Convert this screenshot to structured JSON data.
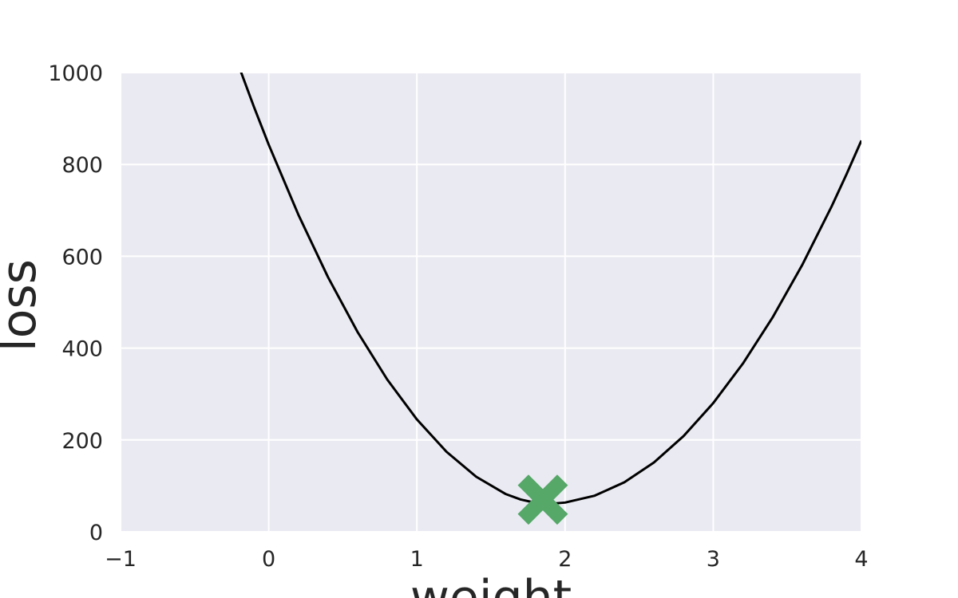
{
  "chart_data": {
    "type": "line",
    "title": "",
    "xlabel": "weight",
    "ylabel": "loss",
    "xlim": [
      -1,
      4
    ],
    "ylim": [
      0,
      1000
    ],
    "x_ticks": [
      -1,
      0,
      1,
      2,
      3,
      4
    ],
    "x_tick_labels": [
      "−1",
      "0",
      "1",
      "2",
      "3",
      "4"
    ],
    "y_ticks": [
      0,
      200,
      400,
      600,
      800,
      1000
    ],
    "y_tick_labels": [
      "0",
      "200",
      "400",
      "600",
      "800",
      "1000"
    ],
    "grid": true,
    "legend": "none",
    "background_color": "#eaeaf2",
    "grid_color": "#ffffff",
    "series": [
      {
        "type": "line",
        "color": "#000000",
        "x": [
          -0.3,
          -0.2,
          -0.1,
          0.0,
          0.2,
          0.4,
          0.6,
          0.8,
          1.0,
          1.2,
          1.4,
          1.6,
          1.7,
          1.8,
          1.85,
          1.9,
          2.0,
          2.2,
          2.4,
          2.6,
          2.8,
          3.0,
          3.2,
          3.4,
          3.6,
          3.8,
          3.9,
          4.0
        ],
        "y": [
          1103.4,
          1012.4,
          925.6,
          843.0,
          690.6,
          554.6,
          434.9,
          331.6,
          244.7,
          174.2,
          120.0,
          82.2,
          70.4,
          63.1,
          61.5,
          61.1,
          63.7,
          78.7,
          107.8,
          151.1,
          208.6,
          280.3,
          366.3,
          466.4,
          580.7,
          709.2,
          778.8,
          852.0
        ]
      },
      {
        "type": "scatter",
        "marker": "X",
        "color": "#55a868",
        "x": [
          1.85
        ],
        "y": [
          70
        ]
      }
    ]
  }
}
